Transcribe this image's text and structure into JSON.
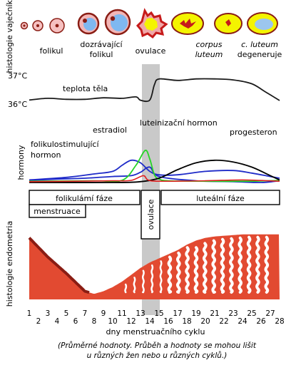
{
  "colors": {
    "ovulation_band": "#c9c9c9",
    "temperature": "#1a1a1a",
    "fsh": "#1f2bc8",
    "lh": "#27d427",
    "estradiol": "#1f2bc8",
    "progesterone": "#000000",
    "tissue": "#e24a31",
    "tissue_dark": "#8a1d14",
    "follicle_fill": "#7fb8f0",
    "corpus_yellow": "#f4f400"
  },
  "sections": {
    "ovary_histology": "histologie vaječníku",
    "hormones": "hormony",
    "endometrium_histology": "histologie endometria"
  },
  "follicle_stages": [
    {
      "id": "follikel",
      "lines": [
        "folikul"
      ],
      "italic": false,
      "icon": "follicle-small-icon"
    },
    {
      "id": "maturing",
      "lines": [
        "dozrávající",
        "folikul"
      ],
      "italic": false,
      "icon": "follicle-maturing-icon"
    },
    {
      "id": "ovulation",
      "lines": [
        "ovulace"
      ],
      "italic": false,
      "icon": "ovulation-follicle-icon"
    },
    {
      "id": "corpus",
      "lines": [
        "corpus",
        "luteum"
      ],
      "italic": true,
      "icon": "corpus-luteum-icon"
    },
    {
      "id": "degen",
      "lines": [
        "c. luteum",
        "degeneruje"
      ],
      "italic": "first",
      "icon": "corpus-luteum-degenerating-icon"
    }
  ],
  "temperature": {
    "high_label": "37°C",
    "low_label": "36°C",
    "curve_label": "teplota těla",
    "note": "values as relative level 0 (36°C) to 1 (37°C), by cycle day",
    "days": [
      1,
      3,
      5,
      7,
      9,
      11,
      12.5,
      13,
      14,
      14.5,
      15,
      17,
      19,
      21,
      23,
      25,
      26.5,
      28
    ],
    "values": [
      0.05,
      0.12,
      0.08,
      0.08,
      0.14,
      0.12,
      0.18,
      0.04,
      0.05,
      0.68,
      0.92,
      0.86,
      0.92,
      0.92,
      0.88,
      0.72,
      0.38,
      0.03
    ]
  },
  "hormones": {
    "labels": {
      "fsh_line1": "folikulostimulující",
      "fsh_line2": "hormon",
      "estradiol": "estradiol",
      "lh": "luteinizační hormon",
      "progesterone": "progesteron"
    }
  },
  "chart_data": {
    "type": "line",
    "x_unit": "cycle day",
    "ylabel": "hormony",
    "series": [
      {
        "name": "folikulostimulující hormon",
        "x": [
          1,
          4,
          7,
          10,
          12,
          13,
          14,
          15,
          19,
          23,
          26,
          28
        ],
        "values": [
          0.05,
          0.08,
          0.1,
          0.14,
          0.16,
          0.24,
          0.36,
          0.14,
          0.04,
          0.02,
          0.0,
          0.04
        ]
      },
      {
        "name": "estradiol",
        "x": [
          1,
          5,
          8,
          10,
          11,
          12,
          13,
          14,
          15,
          17,
          20,
          23,
          25,
          27,
          28
        ],
        "values": [
          0.06,
          0.12,
          0.2,
          0.26,
          0.4,
          0.52,
          0.46,
          0.26,
          0.18,
          0.18,
          0.26,
          0.28,
          0.22,
          0.14,
          0.1
        ]
      },
      {
        "name": "luteinizační hormon",
        "x": [
          1,
          8,
          11,
          12.5,
          13.5,
          14,
          14.5,
          15,
          16,
          20,
          25,
          28
        ],
        "values": [
          0.03,
          0.04,
          0.05,
          0.4,
          0.75,
          0.55,
          0.18,
          0.08,
          0.04,
          0.03,
          0.03,
          0.05
        ]
      },
      {
        "name": "progesteron",
        "x": [
          1,
          10,
          13,
          15,
          17,
          19,
          21,
          23,
          25,
          27,
          28
        ],
        "values": [
          0.0,
          0.0,
          0.02,
          0.1,
          0.3,
          0.46,
          0.52,
          0.48,
          0.36,
          0.16,
          0.06
        ]
      }
    ],
    "ylim": [
      0,
      1
    ]
  },
  "phases": {
    "follicular": "folikulámí fáze",
    "luteal": "luteální fáze",
    "menstruation": "menstruace",
    "ovulation": "ovulace"
  },
  "endometrium": {
    "thickness_note": "relative thickness 0-1 by cycle day",
    "days": [
      1,
      2,
      3,
      4,
      5,
      6,
      7,
      8,
      9,
      10,
      11,
      12,
      13,
      14,
      15,
      16,
      17,
      18,
      19,
      20,
      21,
      22,
      23,
      24,
      25,
      26,
      27,
      28
    ],
    "thickness": [
      0.9,
      0.76,
      0.62,
      0.5,
      0.38,
      0.25,
      0.12,
      0.08,
      0.12,
      0.18,
      0.26,
      0.36,
      0.46,
      0.54,
      0.6,
      0.66,
      0.72,
      0.8,
      0.86,
      0.9,
      0.92,
      0.93,
      0.94,
      0.95,
      0.95,
      0.95,
      0.95,
      0.95
    ]
  },
  "axis": {
    "ticks_top": [
      "1",
      "3",
      "5",
      "7",
      "9",
      "11",
      "13",
      "15",
      "17",
      "19",
      "21",
      "23",
      "25",
      "27"
    ],
    "ticks_bottom": [
      "2",
      "4",
      "6",
      "8",
      "10",
      "12",
      "14",
      "16",
      "18",
      "20",
      "22",
      "24",
      "26",
      "28"
    ],
    "caption": "dny menstruačního cyklu"
  },
  "note": {
    "line1": "(Průměrné hodnoty. Průběh a hodnoty se mohou lišit",
    "line2": "u různých žen nebo u různých cyklů.)"
  }
}
